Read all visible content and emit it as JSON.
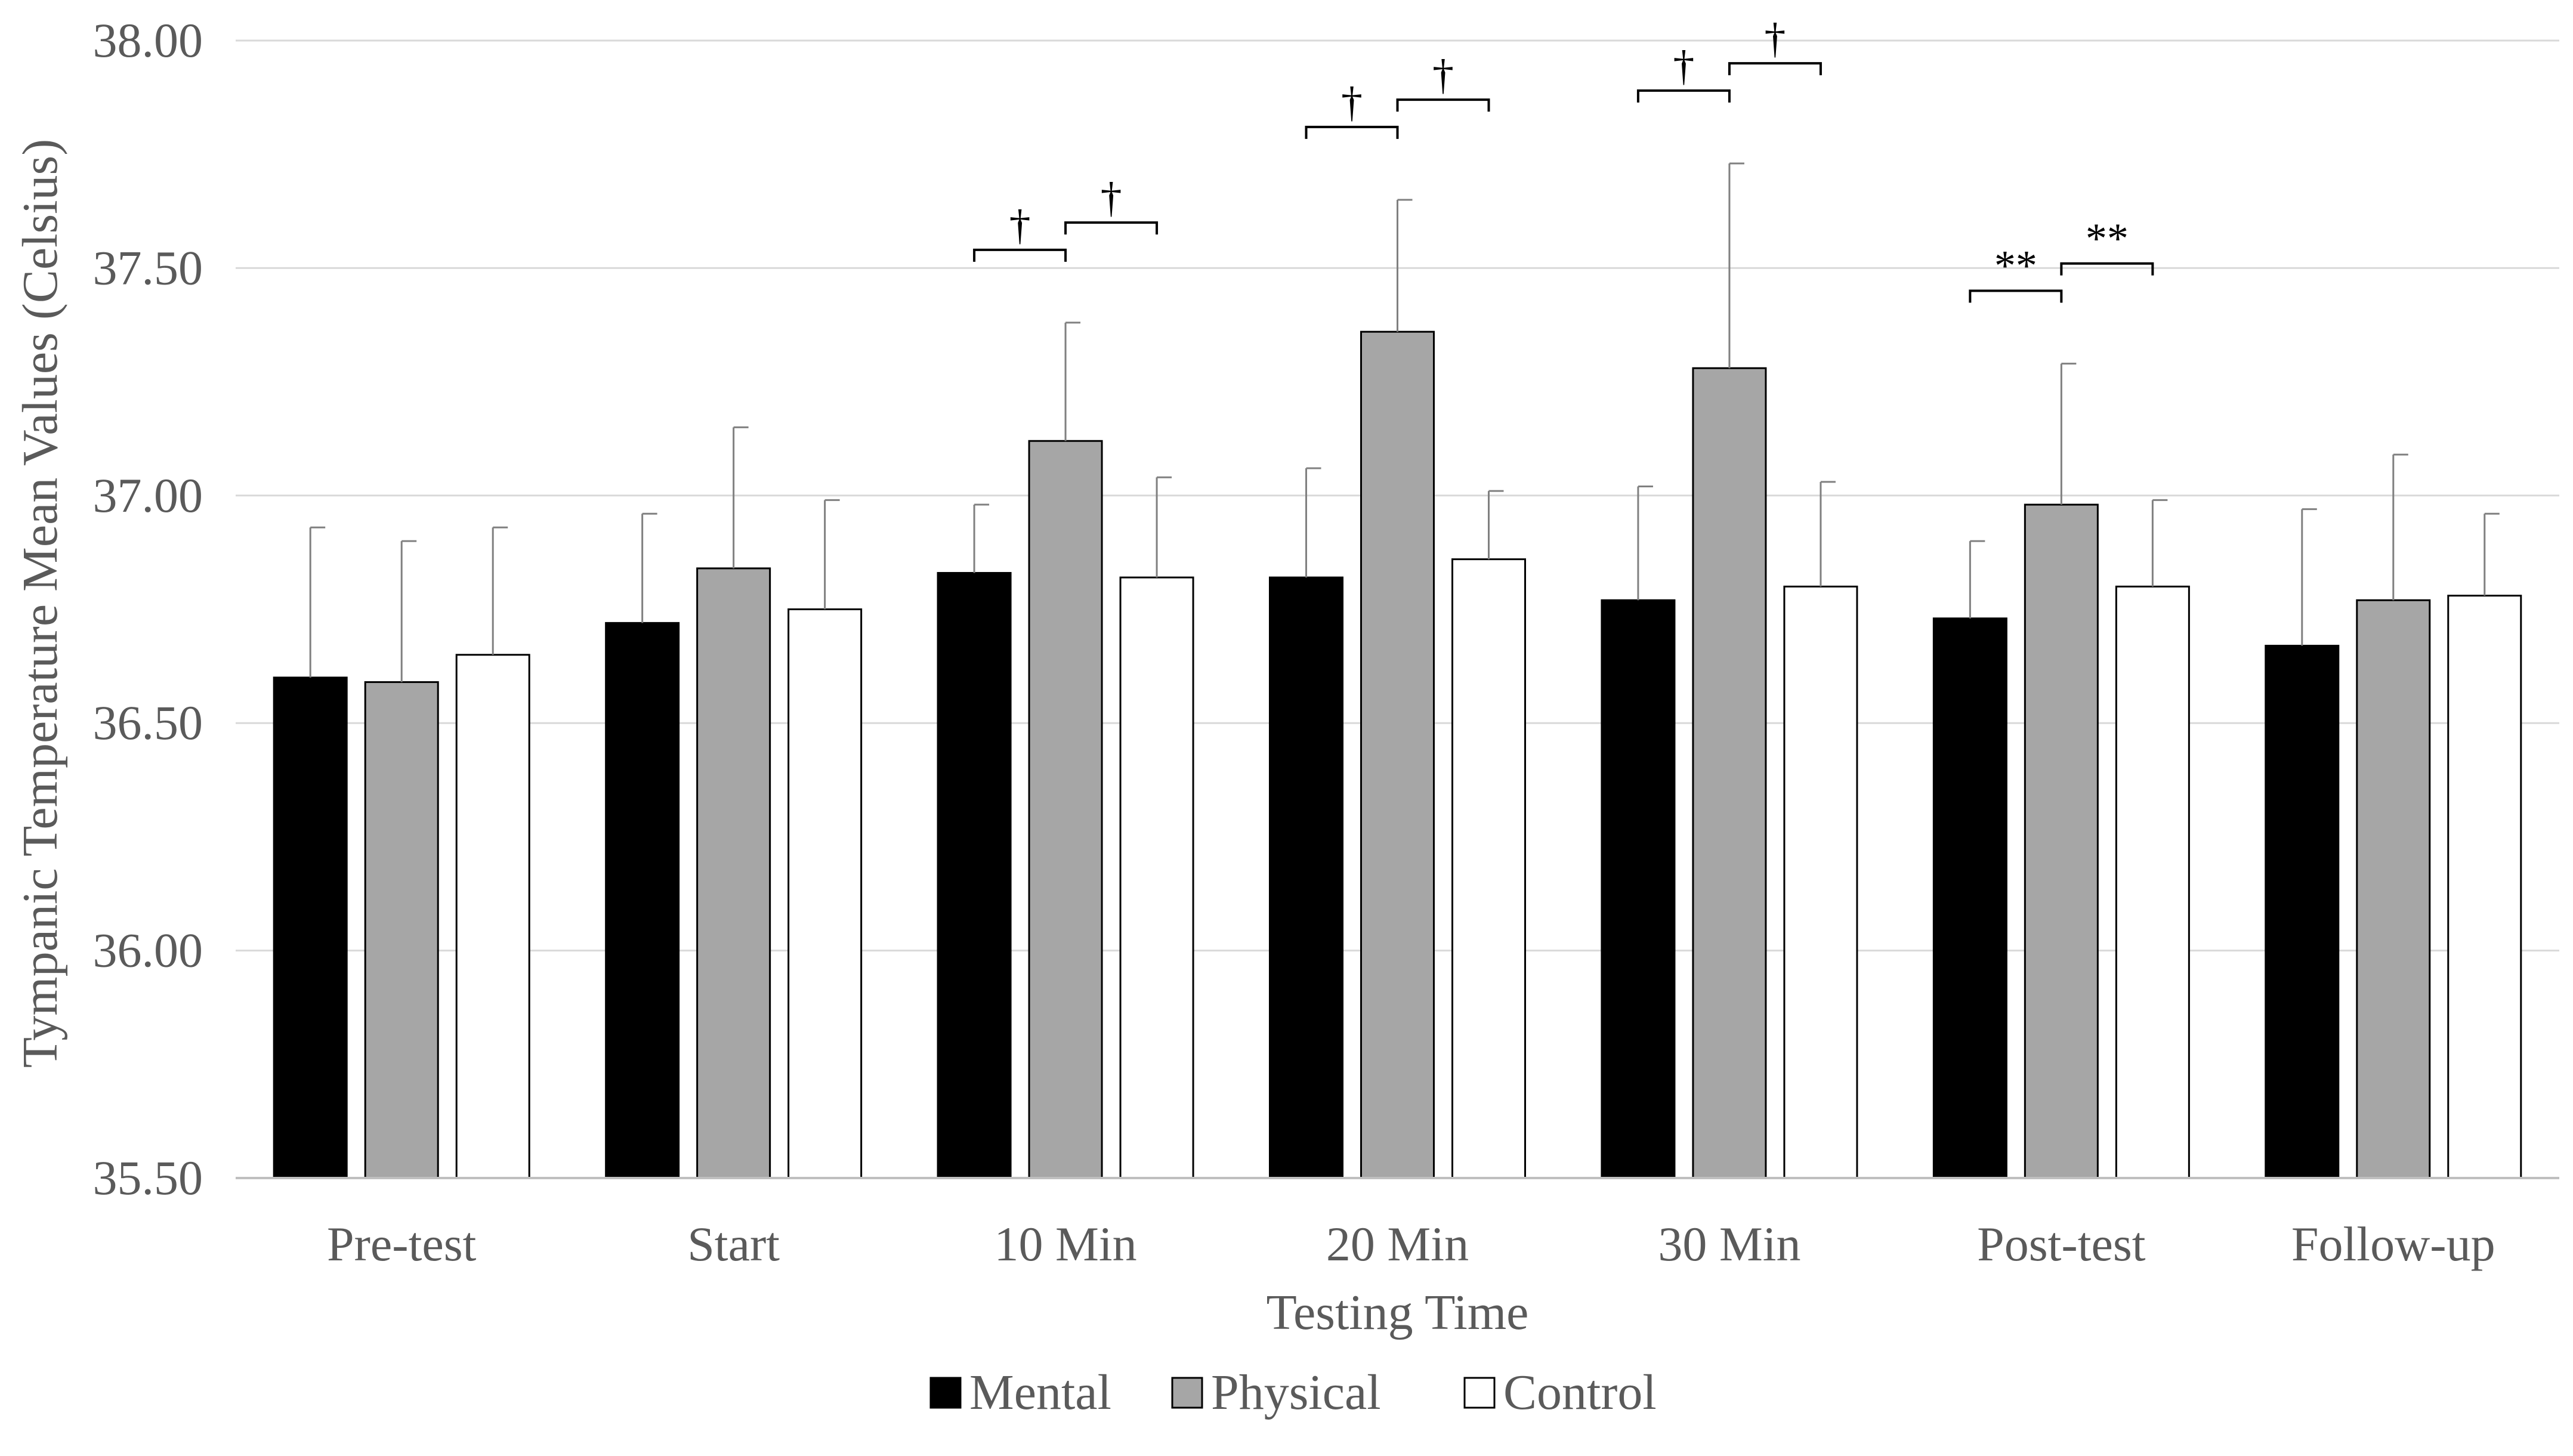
{
  "chart_data": {
    "type": "bar",
    "title": "",
    "xlabel": "Testing Time",
    "ylabel": "Tympanic Temperature Mean Values (Celsius)",
    "ylim": [
      35.5,
      38.0
    ],
    "yticks": [
      35.5,
      36.0,
      36.5,
      37.0,
      37.5,
      38.0
    ],
    "ytick_labels": [
      "35.50",
      "36.00",
      "36.50",
      "37.00",
      "37.50",
      "38.00"
    ],
    "grid": true,
    "legend_position": "bottom-center",
    "categories": [
      "Pre-test",
      "Start",
      "10 Min",
      "20 Min",
      "30 Min",
      "Post-test",
      "Follow-up"
    ],
    "series": [
      {
        "name": "Mental",
        "color": "#000000",
        "values": [
          36.6,
          36.72,
          36.83,
          36.82,
          36.77,
          36.73,
          36.67
        ],
        "errors": [
          0.33,
          0.24,
          0.15,
          0.24,
          0.25,
          0.17,
          0.3
        ]
      },
      {
        "name": "Physical",
        "color": "#a6a6a6",
        "values": [
          36.59,
          36.84,
          37.12,
          37.36,
          37.28,
          36.98,
          36.77
        ],
        "errors": [
          0.31,
          0.31,
          0.26,
          0.29,
          0.45,
          0.31,
          0.32
        ]
      },
      {
        "name": "Control",
        "color": "#ffffff",
        "values": [
          36.65,
          36.75,
          36.82,
          36.86,
          36.8,
          36.8,
          36.78
        ],
        "errors": [
          0.28,
          0.24,
          0.22,
          0.15,
          0.23,
          0.19,
          0.18
        ]
      }
    ],
    "annotations": [
      {
        "category": "10 Min",
        "between": [
          "Mental",
          "Physical"
        ],
        "label": "†"
      },
      {
        "category": "10 Min",
        "between": [
          "Physical",
          "Control"
        ],
        "label": "†"
      },
      {
        "category": "20 Min",
        "between": [
          "Mental",
          "Physical"
        ],
        "label": "†"
      },
      {
        "category": "20 Min",
        "between": [
          "Physical",
          "Control"
        ],
        "label": "†"
      },
      {
        "category": "30 Min",
        "between": [
          "Mental",
          "Physical"
        ],
        "label": "†"
      },
      {
        "category": "30 Min",
        "between": [
          "Physical",
          "Control"
        ],
        "label": "†"
      },
      {
        "category": "Post-test",
        "between": [
          "Mental",
          "Physical"
        ],
        "label": "**"
      },
      {
        "category": "Post-test",
        "between": [
          "Physical",
          "Control"
        ],
        "label": "**"
      }
    ]
  }
}
